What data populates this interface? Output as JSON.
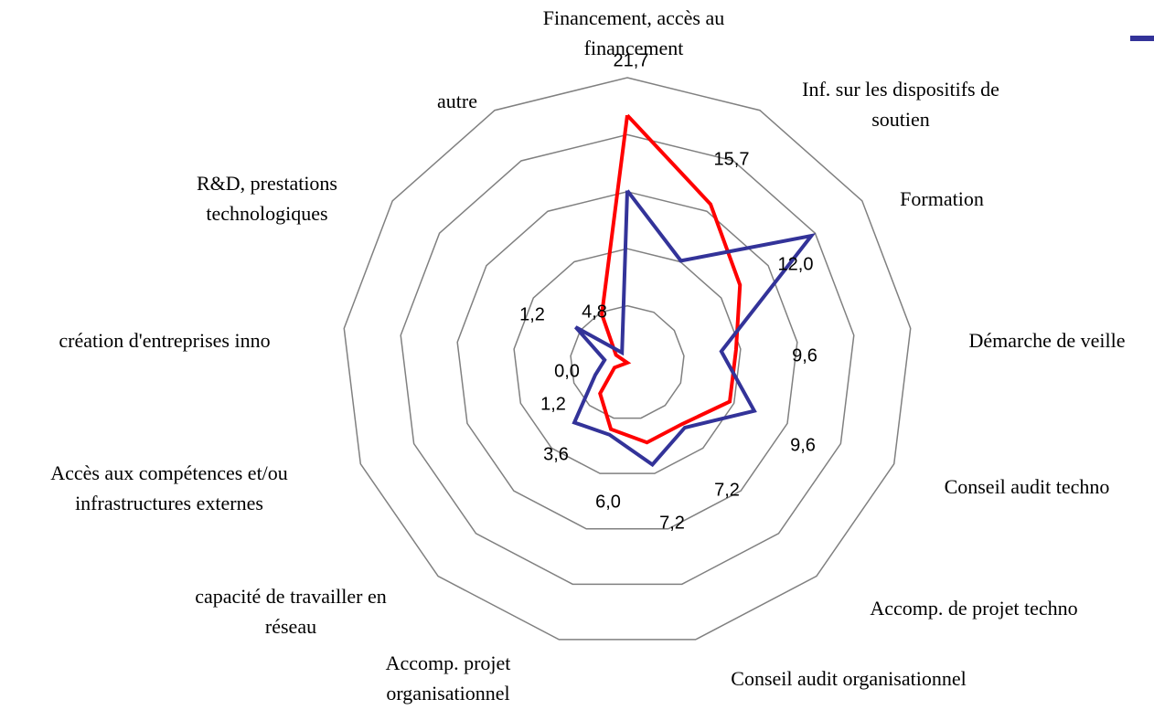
{
  "chart_data": {
    "type": "radar",
    "categories": [
      "Financement, accès au\nfinancement",
      "Inf. sur les dispositifs de\nsoutien",
      "Formation",
      "Démarche de veille",
      "Conseil audit techno",
      "Accomp. de projet techno",
      "Conseil  audit organisationnel",
      "Accomp.  projet\norganisationnel",
      "capacité de travailler en\nréseau",
      "Accès aux compétences et/ou\ninfrastructures externes",
      "création d'entreprises inno",
      "R&D, prestations\ntechnologiques",
      "autre"
    ],
    "series": [
      {
        "color": "#ff0000",
        "values": [
          21.7,
          15.7,
          12.0,
          9.6,
          9.6,
          7.2,
          7.2,
          6.0,
          3.6,
          1.2,
          0.0,
          1.2,
          4.8
        ],
        "value_labels": [
          "21,7",
          "15,7",
          "12,0",
          "9,6",
          "9,6",
          "7,2",
          "7,2",
          "6,0",
          "3,6",
          "1,2",
          "0,0",
          "1,2",
          "4,8"
        ]
      },
      {
        "color": "#333399",
        "values": [
          15.1,
          10.1,
          19.6,
          8.3,
          11.9,
          7.6,
          9.2,
          6.5,
          7.0,
          3.0,
          2.0,
          5.5,
          1.0
        ]
      }
    ],
    "rlim": [
      0,
      25
    ],
    "rticks": [
      5,
      10,
      15,
      20,
      25
    ],
    "grid": true
  }
}
